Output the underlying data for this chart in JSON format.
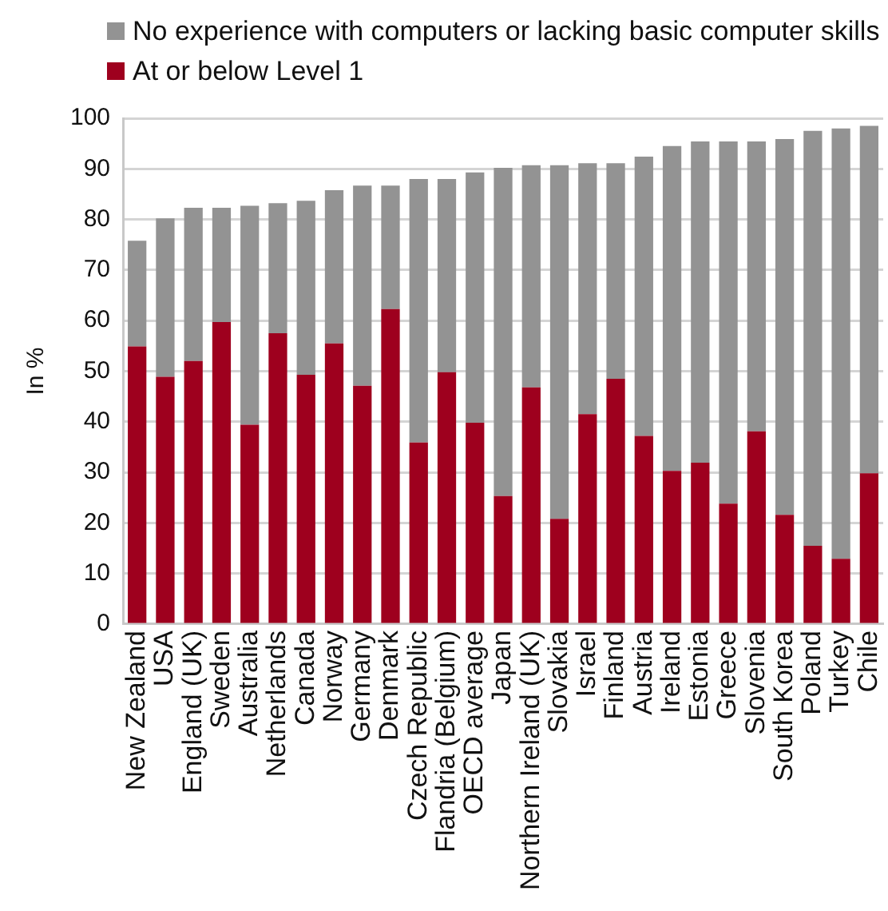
{
  "chart_data": {
    "type": "bar",
    "stacked": true,
    "ylabel": "In %",
    "categories": [
      "New Zealand",
      "USA",
      "England (UK)",
      "Sweden",
      "Australia",
      "Netherlands",
      "Canada",
      "Norway",
      "Germany",
      "Denmark",
      "Czech Republic",
      "Flandria (Belgium)",
      "OECD average",
      "Japan",
      "Northern Ireland (UK)",
      "Slovakia",
      "Israel",
      "Finland",
      "Austria",
      "Ireland",
      "Estonia",
      "Greece",
      "Slovenia",
      "South Korea",
      "Poland",
      "Turkey",
      "Chile"
    ],
    "series": [
      {
        "name": "At or below Level 1",
        "color": "#9e001e",
        "values": [
          54.9,
          48.9,
          52.0,
          59.7,
          39.4,
          57.5,
          49.3,
          55.5,
          47.1,
          62.3,
          35.9,
          49.8,
          39.8,
          25.3,
          46.8,
          20.8,
          41.5,
          48.5,
          37.2,
          30.3,
          31.9,
          23.8,
          38.1,
          21.6,
          15.5,
          12.9,
          29.8
        ]
      },
      {
        "name": "No experience with computers or lacking basic computer skills",
        "color": "#939393",
        "values": [
          20.9,
          31.3,
          30.3,
          22.6,
          43.3,
          25.7,
          34.4,
          30.3,
          39.6,
          24.4,
          52.1,
          38.2,
          49.5,
          64.9,
          43.9,
          69.9,
          49.6,
          42.6,
          55.2,
          64.2,
          63.5,
          71.6,
          57.3,
          74.3,
          82.0,
          85.1,
          68.7
        ]
      }
    ],
    "ylim": [
      0,
      100
    ],
    "yticks": [
      0,
      10,
      20,
      30,
      40,
      50,
      60,
      70,
      80,
      90,
      100
    ],
    "grid": "y",
    "legend": "top"
  }
}
